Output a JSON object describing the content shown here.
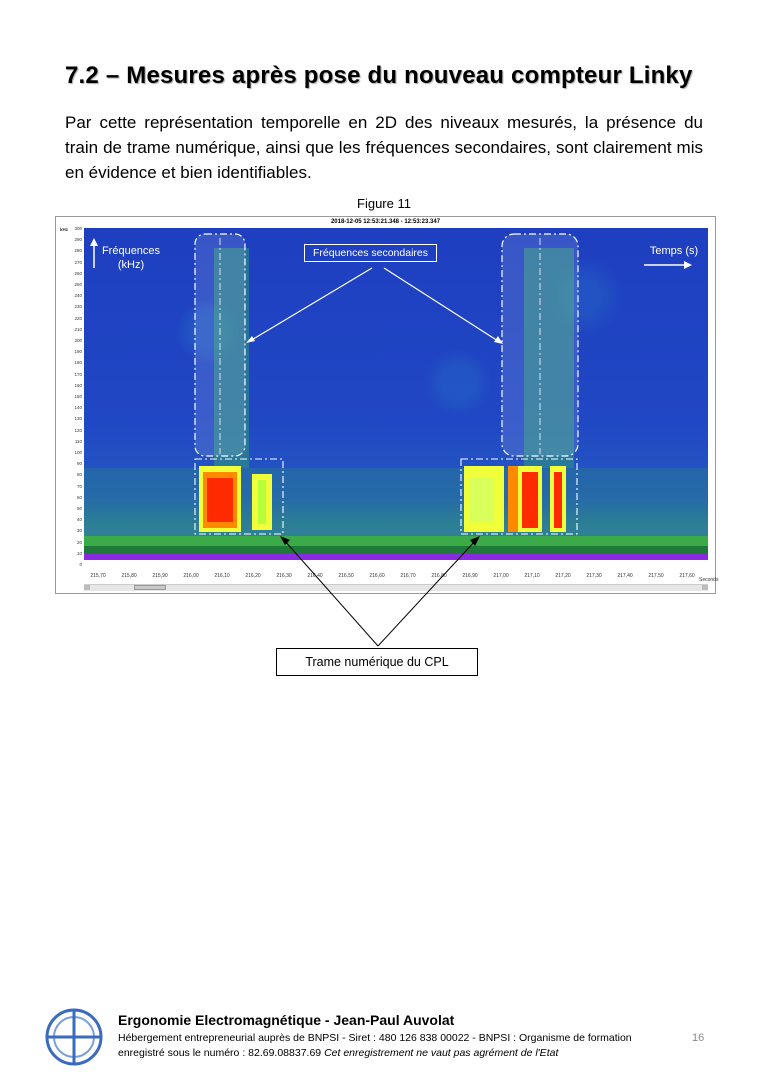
{
  "heading": "7.2 – Mesures après pose du nouveau compteur Linky",
  "intro": "Par cette représentation temporelle en 2D des niveaux mesurés, la présence du train de trame numérique, ainsi que les fréquences secondaires, sont clairement mis en évidence et bien identifiables.",
  "figure_caption": "Figure 11",
  "spectrogram": {
    "timestamp": "2018-12-05 12:53:21.348 - 12:53:23.347",
    "y_unit": "kHz",
    "y_ticks": [
      "300",
      "290",
      "280",
      "270",
      "260",
      "250",
      "240",
      "230",
      "220",
      "210",
      "200",
      "190",
      "180",
      "170",
      "160",
      "150",
      "140",
      "130",
      "120",
      "110",
      "100",
      "90",
      "80",
      "70",
      "60",
      "50",
      "40",
      "30",
      "20",
      "10",
      "0"
    ],
    "x_ticks": [
      "215,70",
      "215,80",
      "215,90",
      "216,00",
      "216,10",
      "216,20",
      "216,30",
      "216,40",
      "216,50",
      "216,60",
      "216,70",
      "216,80",
      "216,90",
      "217,00",
      "217,10",
      "217,20",
      "217,30",
      "217,40",
      "217,50",
      "217,60"
    ],
    "x_unit": "Seconds"
  },
  "annotations": {
    "freq_label_line1": "Fréquences",
    "freq_label_line2": "(kHz)",
    "secondary_label": "Fréquences secondaires",
    "time_label": "Temps (s)",
    "cpl_label": "Trame numérique du CPL"
  },
  "footer": {
    "title": "Ergonomie Electromagnétique - Jean-Paul Auvolat",
    "line1": "Hébergement entrepreneurial auprès de BNPSI - Siret : 480 126 838 00022 - BNPSI : Organisme de formation",
    "line2_regular": "enregistré sous le numéro : 82.69.08837.69 ",
    "line2_italic": "Cet enregistrement ne vaut pas agrément de l'Etat",
    "page_number": "16"
  },
  "colors": {
    "spectrum_low": "#1e3fc0",
    "spectrum_high": "#ff2a00",
    "baseline": "#8a2be2"
  }
}
